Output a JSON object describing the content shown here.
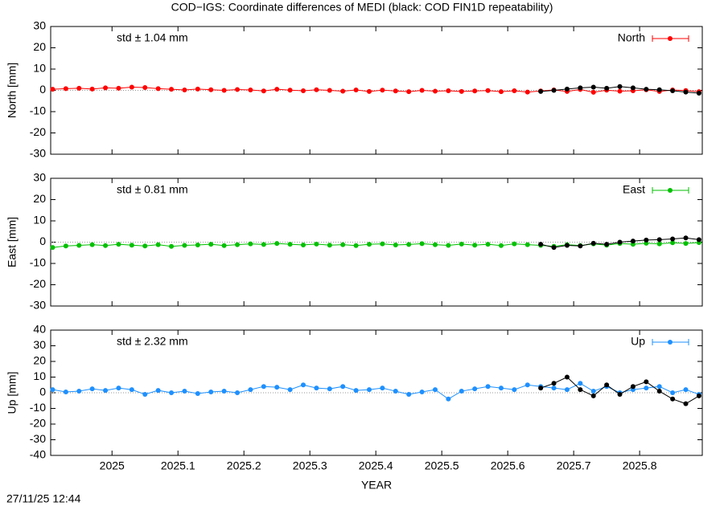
{
  "title": "COD−IGS: Coordinate differences of MEDI (black: COD FIN1D repeatability)",
  "footer": "27/11/25 12:44",
  "chart_data": [
    {
      "type": "line",
      "ylabel": "North [mm]",
      "annotation": "std ± 1.04 mm",
      "x": [
        2024.91,
        2024.93,
        2024.95,
        2024.97,
        2024.99,
        2025.01,
        2025.03,
        2025.05,
        2025.07,
        2025.09,
        2025.11,
        2025.13,
        2025.15,
        2025.17,
        2025.19,
        2025.21,
        2025.23,
        2025.25,
        2025.27,
        2025.29,
        2025.31,
        2025.33,
        2025.35,
        2025.37,
        2025.39,
        2025.41,
        2025.43,
        2025.45,
        2025.47,
        2025.49,
        2025.51,
        2025.53,
        2025.55,
        2025.57,
        2025.59,
        2025.61,
        2025.63,
        2025.65,
        2025.67,
        2025.69,
        2025.71,
        2025.73,
        2025.75,
        2025.77,
        2025.79,
        2025.81,
        2025.83,
        2025.85,
        2025.87,
        2025.89
      ],
      "series": [
        {
          "name": "North",
          "color": "#ff0000",
          "values": [
            0.5,
            0.8,
            1.0,
            0.6,
            1.2,
            1.0,
            1.5,
            1.3,
            0.8,
            0.5,
            0.2,
            0.6,
            0.3,
            0.0,
            0.4,
            0.2,
            -0.3,
            0.5,
            0.1,
            -0.2,
            0.3,
            0.0,
            -0.4,
            0.2,
            -0.5,
            0.1,
            -0.3,
            -0.6,
            0.0,
            -0.4,
            -0.2,
            -0.5,
            -0.3,
            -0.1,
            -0.6,
            -0.2,
            -0.8,
            -0.3,
            0.2,
            -0.5,
            0.4,
            -0.9,
            0.1,
            -0.4,
            -0.2,
            0.3,
            -0.5,
            0.2,
            -0.1,
            -0.6
          ]
        },
        {
          "color": "#000000",
          "values": [
            null,
            null,
            null,
            null,
            null,
            null,
            null,
            null,
            null,
            null,
            null,
            null,
            null,
            null,
            null,
            null,
            null,
            null,
            null,
            null,
            null,
            null,
            null,
            null,
            null,
            null,
            null,
            null,
            null,
            null,
            null,
            null,
            null,
            null,
            null,
            null,
            null,
            -0.5,
            0.0,
            0.6,
            1.2,
            1.5,
            1.0,
            1.8,
            1.2,
            0.5,
            0.3,
            -0.2,
            -0.8,
            -1.3
          ]
        }
      ],
      "xlim": [
        2024.907,
        2025.895
      ],
      "xticks": [
        2025,
        2025.1,
        2025.2,
        2025.3,
        2025.4,
        2025.5,
        2025.6,
        2025.7,
        2025.8
      ],
      "show_xtick_labels": false,
      "ylim": [
        -30,
        30
      ],
      "yticks": [
        -30,
        -20,
        -10,
        0,
        10,
        20,
        30
      ],
      "zero_line": true,
      "legend": "top-right"
    },
    {
      "type": "line",
      "ylabel": "East [mm]",
      "annotation": "std ± 0.81 mm",
      "x": [
        2024.91,
        2024.93,
        2024.95,
        2024.97,
        2024.99,
        2025.01,
        2025.03,
        2025.05,
        2025.07,
        2025.09,
        2025.11,
        2025.13,
        2025.15,
        2025.17,
        2025.19,
        2025.21,
        2025.23,
        2025.25,
        2025.27,
        2025.29,
        2025.31,
        2025.33,
        2025.35,
        2025.37,
        2025.39,
        2025.41,
        2025.43,
        2025.45,
        2025.47,
        2025.49,
        2025.51,
        2025.53,
        2025.55,
        2025.57,
        2025.59,
        2025.61,
        2025.63,
        2025.65,
        2025.67,
        2025.69,
        2025.71,
        2025.73,
        2025.75,
        2025.77,
        2025.79,
        2025.81,
        2025.83,
        2025.85,
        2025.87,
        2025.89
      ],
      "series": [
        {
          "name": "East",
          "color": "#00c000",
          "values": [
            -2.5,
            -1.8,
            -1.5,
            -1.2,
            -1.6,
            -1.0,
            -1.4,
            -1.8,
            -1.2,
            -2.0,
            -1.5,
            -1.3,
            -1.0,
            -1.6,
            -1.2,
            -0.8,
            -1.1,
            -0.6,
            -1.0,
            -1.3,
            -0.9,
            -1.4,
            -1.2,
            -1.6,
            -1.0,
            -0.8,
            -1.3,
            -1.1,
            -0.7,
            -1.2,
            -1.5,
            -0.9,
            -1.4,
            -1.0,
            -1.6,
            -0.8,
            -1.2,
            -1.5,
            -2.0,
            -1.2,
            -1.6,
            -0.8,
            -1.4,
            -0.6,
            -1.0,
            -0.5,
            -0.8,
            -0.3,
            -0.6,
            -0.2
          ]
        },
        {
          "color": "#000000",
          "values": [
            null,
            null,
            null,
            null,
            null,
            null,
            null,
            null,
            null,
            null,
            null,
            null,
            null,
            null,
            null,
            null,
            null,
            null,
            null,
            null,
            null,
            null,
            null,
            null,
            null,
            null,
            null,
            null,
            null,
            null,
            null,
            null,
            null,
            null,
            null,
            null,
            null,
            -1.0,
            -2.5,
            -1.5,
            -1.8,
            -0.5,
            -1.0,
            0.0,
            0.5,
            1.0,
            1.2,
            1.5,
            2.0,
            1.2
          ]
        }
      ],
      "xlim": [
        2024.907,
        2025.895
      ],
      "xticks": [
        2025,
        2025.1,
        2025.2,
        2025.3,
        2025.4,
        2025.5,
        2025.6,
        2025.7,
        2025.8
      ],
      "show_xtick_labels": false,
      "ylim": [
        -30,
        30
      ],
      "yticks": [
        -30,
        -20,
        -10,
        0,
        10,
        20,
        30
      ],
      "zero_line": true,
      "legend": "top-right"
    },
    {
      "type": "line",
      "ylabel": "Up [mm]",
      "xlabel": "YEAR",
      "annotation": "std ± 2.32 mm",
      "x": [
        2024.91,
        2024.93,
        2024.95,
        2024.97,
        2024.99,
        2025.01,
        2025.03,
        2025.05,
        2025.07,
        2025.09,
        2025.11,
        2025.13,
        2025.15,
        2025.17,
        2025.19,
        2025.21,
        2025.23,
        2025.25,
        2025.27,
        2025.29,
        2025.31,
        2025.33,
        2025.35,
        2025.37,
        2025.39,
        2025.41,
        2025.43,
        2025.45,
        2025.47,
        2025.49,
        2025.51,
        2025.53,
        2025.55,
        2025.57,
        2025.59,
        2025.61,
        2025.63,
        2025.65,
        2025.67,
        2025.69,
        2025.71,
        2025.73,
        2025.75,
        2025.77,
        2025.79,
        2025.81,
        2025.83,
        2025.85,
        2025.87,
        2025.89
      ],
      "series": [
        {
          "name": "Up",
          "color": "#1e90ff",
          "values": [
            2.0,
            0.5,
            1.0,
            2.5,
            1.5,
            3.0,
            2.0,
            -1.0,
            1.5,
            0.0,
            1.0,
            -0.5,
            0.5,
            1.0,
            0.0,
            2.0,
            4.0,
            3.5,
            2.0,
            5.0,
            3.0,
            2.5,
            4.0,
            1.5,
            2.0,
            3.0,
            1.0,
            -1.0,
            0.5,
            2.0,
            -4.0,
            1.0,
            2.5,
            4.0,
            3.0,
            2.0,
            5.0,
            4.0,
            3.0,
            2.0,
            6.0,
            1.0,
            4.0,
            0.0,
            2.0,
            3.0,
            4.0,
            0.0,
            2.0,
            -1.0
          ]
        },
        {
          "color": "#000000",
          "values": [
            null,
            null,
            null,
            null,
            null,
            null,
            null,
            null,
            null,
            null,
            null,
            null,
            null,
            null,
            null,
            null,
            null,
            null,
            null,
            null,
            null,
            null,
            null,
            null,
            null,
            null,
            null,
            null,
            null,
            null,
            null,
            null,
            null,
            null,
            null,
            null,
            null,
            3.0,
            6.0,
            10.0,
            2.0,
            -2.0,
            5.0,
            -1.0,
            4.0,
            7.0,
            1.0,
            -4.0,
            -7.0,
            -2.0
          ]
        }
      ],
      "xlim": [
        2024.907,
        2025.895
      ],
      "xticks": [
        2025,
        2025.1,
        2025.2,
        2025.3,
        2025.4,
        2025.5,
        2025.6,
        2025.7,
        2025.8
      ],
      "show_xtick_labels": true,
      "ylim": [
        -40,
        40
      ],
      "yticks": [
        -40,
        -30,
        -20,
        -10,
        0,
        10,
        20,
        30,
        40
      ],
      "zero_line": true,
      "legend": "top-right"
    }
  ]
}
